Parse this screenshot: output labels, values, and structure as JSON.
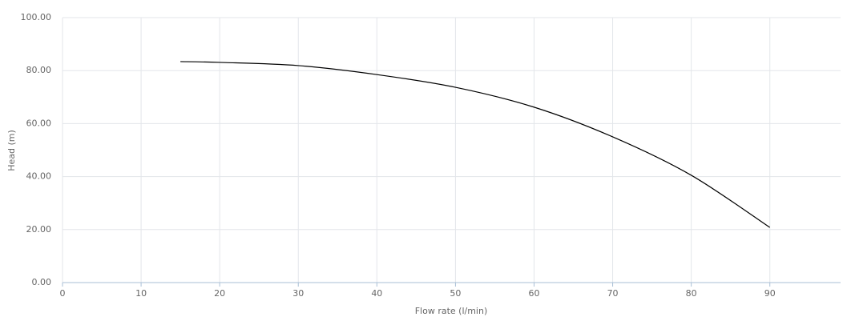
{
  "chart_data": {
    "type": "line",
    "x_label": "Flow rate (l/min)",
    "y_label": "Head (m)",
    "x": [
      15,
      20,
      30,
      40,
      50,
      60,
      70,
      80,
      90
    ],
    "series": [
      {
        "name": "Head",
        "color": "#000000",
        "values": [
          83.4,
          83.1,
          81.9,
          78.5,
          73.7,
          66.2,
          55.0,
          40.5,
          20.8
        ]
      }
    ],
    "xlim": [
      0,
      99
    ],
    "xticks": [
      0,
      10,
      20,
      30,
      40,
      50,
      60,
      70,
      80,
      90
    ],
    "ylim": [
      0,
      100
    ],
    "yticks": [
      {
        "value": 0,
        "label": "0.00"
      },
      {
        "value": 20,
        "label": "20.00"
      },
      {
        "value": 40,
        "label": "40.00"
      },
      {
        "value": 60,
        "label": "60.00"
      },
      {
        "value": 80,
        "label": "80.00"
      },
      {
        "value": 100,
        "label": "100.00"
      }
    ],
    "grid": true
  }
}
